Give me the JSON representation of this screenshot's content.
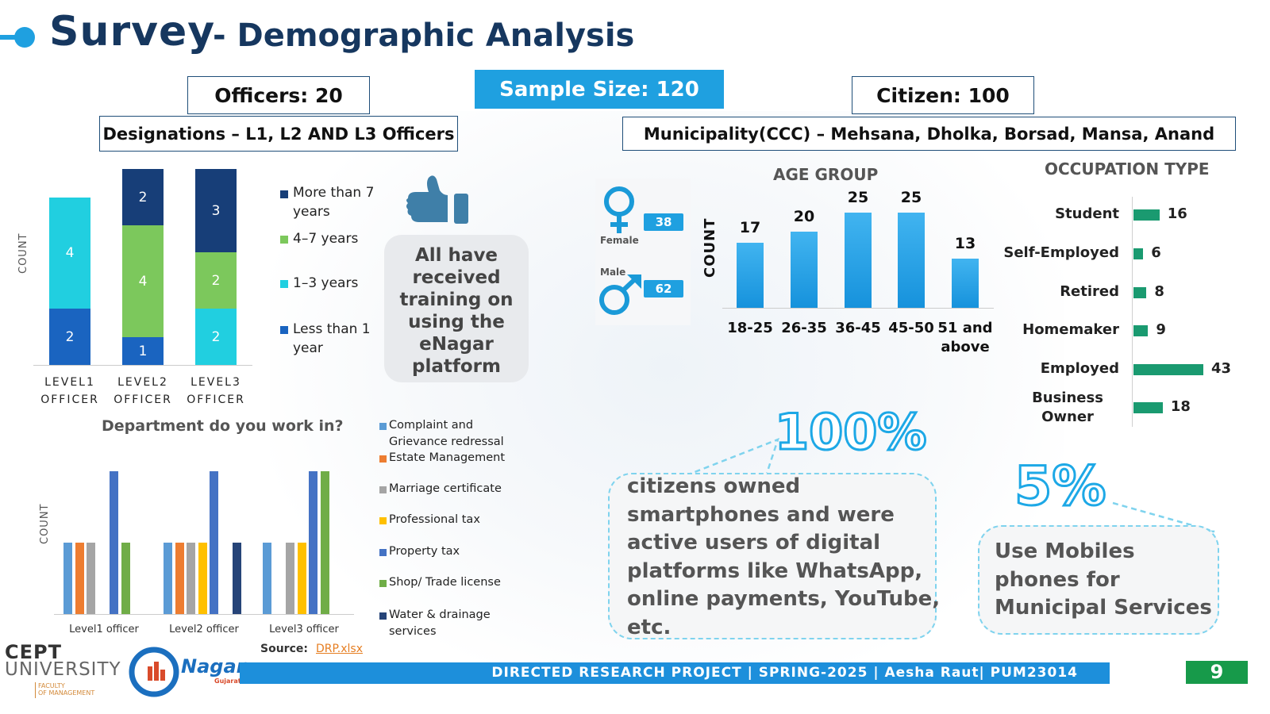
{
  "header": {
    "title_main": "Survey",
    "title_sub": "- Demographic Analysis"
  },
  "boxes": {
    "officers": "Officers: 20",
    "sample": "Sample Size: 120",
    "citizen": "Citizen: 100",
    "designations": "Designations – L1, L2 AND L3 Officers",
    "municipality": "Municipality(CCC) – Mehsana, Dholka, Borsad, Mansa, Anand"
  },
  "colors": {
    "navy": "#16375f",
    "accent_blue": "#1fa0e0",
    "green_bar": "#1a9a70",
    "footer": "#1d8fdb",
    "page_no": "#179a4a"
  },
  "chart_data": [
    {
      "type": "bar",
      "stacked": true,
      "ylabel": "COUNT",
      "categories": [
        "LEVEL1 OFFICER",
        "LEVEL2 OFFICER",
        "LEVEL3 OFFICER"
      ],
      "series": [
        {
          "name": "Less than 1 year",
          "values": [
            2,
            1,
            0
          ],
          "color": "#1a64c0"
        },
        {
          "name": "1–3 years",
          "values": [
            4,
            0,
            2
          ],
          "color": "#21cfe0"
        },
        {
          "name": "4–7 years",
          "values": [
            0,
            4,
            2
          ],
          "color": "#7cc85c"
        },
        {
          "name": "More than 7 years",
          "values": [
            0,
            2,
            3
          ],
          "color": "#173e78"
        }
      ],
      "legend_labels": [
        "More than 7 years",
        "4–7 years",
        "1–3 years",
        "Less than 1 year"
      ]
    },
    {
      "type": "bar",
      "title": "Department do you work in?",
      "ylabel": "COUNT",
      "categories": [
        "Level1 officer",
        "Level2 officer",
        "Level3 officer"
      ],
      "series": [
        {
          "name": "Complaint and Grievance redressal",
          "values": [
            1,
            1,
            1
          ],
          "color": "#5b9bd5"
        },
        {
          "name": "Estate Management",
          "values": [
            1,
            1,
            0
          ],
          "color": "#ed7d31"
        },
        {
          "name": "Marriage certificate",
          "values": [
            1,
            1,
            1
          ],
          "color": "#a5a5a5"
        },
        {
          "name": "Professional tax",
          "values": [
            0,
            1,
            1
          ],
          "color": "#ffc000"
        },
        {
          "name": "Property tax",
          "values": [
            2,
            2,
            2
          ],
          "color": "#4472c4"
        },
        {
          "name": "Shop/ Trade license",
          "values": [
            1,
            0,
            2
          ],
          "color": "#70ad47"
        },
        {
          "name": "Water & drainage services",
          "values": [
            0,
            1,
            0
          ],
          "color": "#264478"
        }
      ],
      "ymax": 2
    },
    {
      "type": "bar",
      "title": "AGE GROUP",
      "ylabel": "COUNT",
      "categories": [
        "18-25",
        "26-35",
        "36-45",
        "45-50",
        "51 and above"
      ],
      "values": [
        17,
        20,
        25,
        25,
        13
      ],
      "ylim": [
        0,
        25
      ]
    },
    {
      "type": "bar",
      "orientation": "horizontal",
      "title": "OCCUPATION TYPE",
      "categories": [
        "Student",
        "Self-Employed",
        "Retired",
        "Homemaker",
        "Employed",
        "Business Owner"
      ],
      "values": [
        16,
        6,
        8,
        9,
        43,
        18
      ]
    }
  ],
  "level_chart": {
    "seg_labels": [
      "2",
      "4",
      "1",
      "4",
      "2",
      "2",
      "2",
      "3"
    ],
    "cat_lines": [
      [
        "LEVEL1",
        "OFFICER"
      ],
      [
        "LEVEL2",
        "OFFICER"
      ],
      [
        "LEVEL3",
        "OFFICER"
      ]
    ],
    "legend": [
      [
        "More than 7",
        "years"
      ],
      [
        "4–7 years"
      ],
      [
        "1–3 years"
      ],
      [
        "Less than 1",
        "year"
      ]
    ]
  },
  "training_bubble": [
    "All have",
    "received",
    "training on",
    "using the",
    "eNagar",
    "platform"
  ],
  "gender": {
    "female_label": "Female",
    "female_count": "38",
    "male_label": "Male",
    "male_count": "62"
  },
  "age_cat_lines": [
    [
      "18-25"
    ],
    [
      "26-35"
    ],
    [
      "36-45"
    ],
    [
      "45-50"
    ],
    [
      "51 and",
      "above"
    ]
  ],
  "occupation_lines": [
    [
      "Student"
    ],
    [
      "Self-Employed"
    ],
    [
      "Retired"
    ],
    [
      "Homemaker"
    ],
    [
      "Employed"
    ],
    [
      "Business",
      "Owner"
    ]
  ],
  "dept_legend_lines": [
    [
      "Complaint and",
      "Grievance redressal"
    ],
    [
      "Estate Management"
    ],
    [
      "Marriage certificate"
    ],
    [
      "Professional tax"
    ],
    [
      "Property tax"
    ],
    [
      "Shop/ Trade license"
    ],
    [
      "Water & drainage",
      "services"
    ]
  ],
  "highlights": {
    "pct1": "100%",
    "text1": [
      "citizens owned",
      "smartphones and were",
      "active users of digital",
      "platforms like WhatsApp,",
      "online payments, YouTube,",
      "etc."
    ],
    "pct2": "5%",
    "text2": [
      "Use Mobiles",
      "phones for",
      "Municipal Services"
    ]
  },
  "source": {
    "label": "Source:",
    "link": "DRP.xlsx"
  },
  "footer": {
    "university_1": "CEPT",
    "university_2": "UNIVERSITY",
    "faculty": "FACULTY",
    "faculty_2": "OF MANAGEMENT",
    "logo_text": "Nagar",
    "logo_sub": "Gujarat",
    "bar_text": "DIRECTED RESEARCH PROJECT |  SPRING-2025 | Aesha Raut| PUM23014",
    "page": "9"
  }
}
